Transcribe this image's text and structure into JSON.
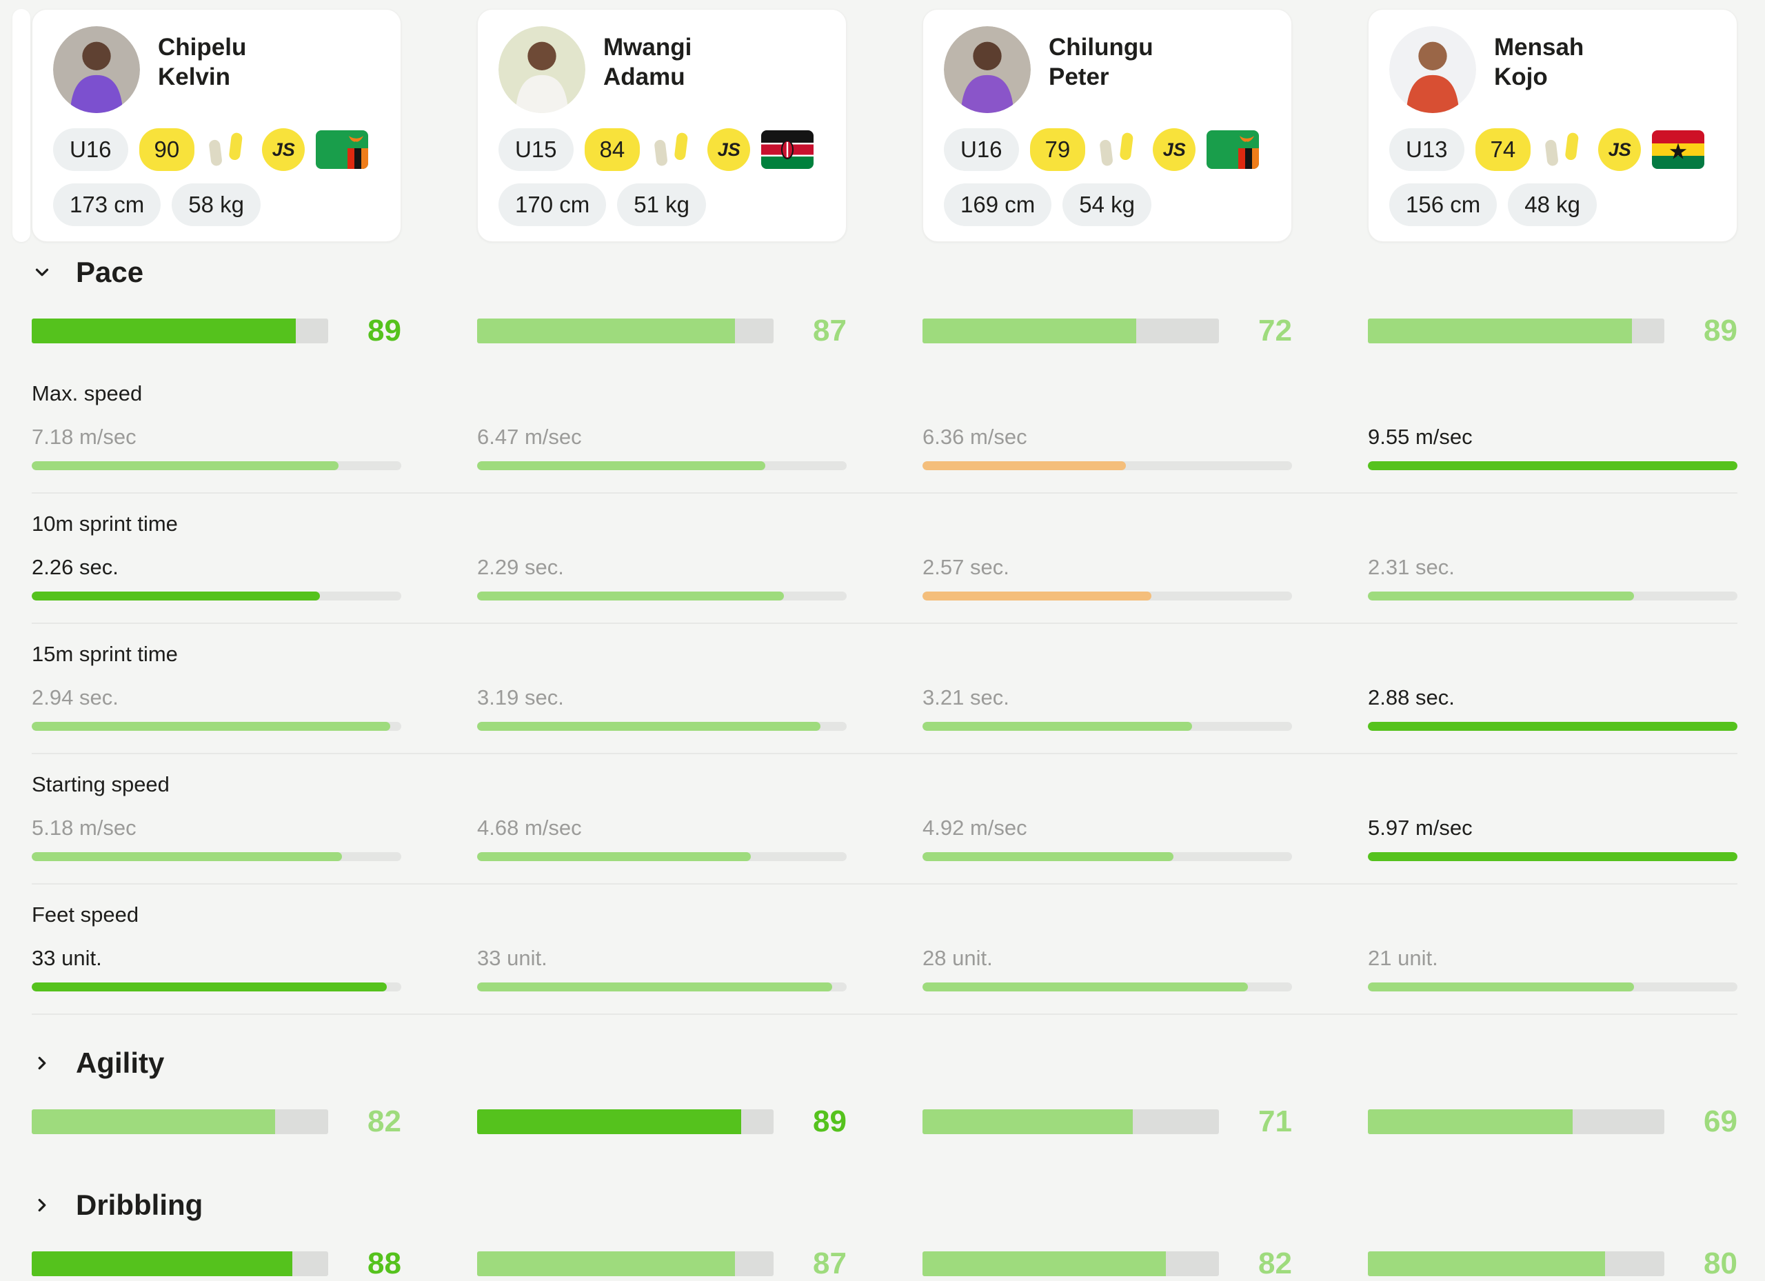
{
  "colors": {
    "page_bg": "#F4F5F3",
    "card_bg": "#FFFFFF",
    "pill_bg": "#EDF0F1",
    "badge_yellow": "#F8E23B",
    "text_dark": "#1E1E1C",
    "text_gray": "#9B9B99",
    "green_strong": "#55C21D",
    "green_light": "#9EDB7D",
    "orange": "#F4BE7B",
    "bar_track": "#DCDDDB",
    "divider": "#E7E8E6"
  },
  "players": [
    {
      "first": "Chipelu",
      "last": "Kelvin",
      "age_group": "U16",
      "rating": "90",
      "js": "JS",
      "flag": "zambia",
      "height": "173 cm",
      "weight": "58 kg",
      "avatar_bg": "#B9B3AB",
      "avatar_shirt": "#7C50CF",
      "avatar_skin": "#5F4132"
    },
    {
      "first": "Mwangi",
      "last": "Adamu",
      "age_group": "U15",
      "rating": "84",
      "js": "JS",
      "flag": "kenya",
      "height": "170 cm",
      "weight": "51 kg",
      "avatar_bg": "#E2E5CC",
      "avatar_shirt": "#F4F3EF",
      "avatar_skin": "#6E4A36"
    },
    {
      "first": "Chilungu",
      "last": "Peter",
      "age_group": "U16",
      "rating": "79",
      "js": "JS",
      "flag": "zambia",
      "height": "169 cm",
      "weight": "54 kg",
      "avatar_bg": "#BDB6AC",
      "avatar_shirt": "#8A55C9",
      "avatar_skin": "#5C3E2F"
    },
    {
      "first": "Mensah",
      "last": "Kojo",
      "age_group": "U13",
      "rating": "74",
      "js": "JS",
      "flag": "ghana",
      "height": "156 cm",
      "weight": "48 kg",
      "avatar_bg": "#F1F2F4",
      "avatar_shirt": "#D84F33",
      "avatar_skin": "#9A6647"
    }
  ],
  "sections": [
    {
      "title": "Pace",
      "chevron": "down",
      "scores": [
        {
          "v": "89",
          "tone": "strong"
        },
        {
          "v": "87",
          "tone": "light"
        },
        {
          "v": "72",
          "tone": "light"
        },
        {
          "v": "89",
          "tone": "light"
        }
      ],
      "metrics": [
        {
          "label": "Max. speed",
          "cells": [
            {
              "text": "7.18 m/sec",
              "tone": "normal",
              "bar": "light",
              "fill": 83
            },
            {
              "text": "6.47 m/sec",
              "tone": "normal",
              "bar": "light",
              "fill": 78
            },
            {
              "text": "6.36 m/sec",
              "tone": "normal",
              "bar": "orange",
              "fill": 55
            },
            {
              "text": "9.55 m/sec",
              "tone": "best",
              "bar": "strong",
              "fill": 100
            }
          ]
        },
        {
          "label": "10m sprint time",
          "cells": [
            {
              "text": "2.26 sec.",
              "tone": "best",
              "bar": "strong",
              "fill": 78
            },
            {
              "text": "2.29 sec.",
              "tone": "normal",
              "bar": "light",
              "fill": 83
            },
            {
              "text": "2.57 sec.",
              "tone": "normal",
              "bar": "orange",
              "fill": 62
            },
            {
              "text": "2.31 sec.",
              "tone": "normal",
              "bar": "light",
              "fill": 72
            }
          ]
        },
        {
          "label": "15m sprint time",
          "cells": [
            {
              "text": "2.94 sec.",
              "tone": "normal",
              "bar": "light",
              "fill": 97
            },
            {
              "text": "3.19 sec.",
              "tone": "normal",
              "bar": "light",
              "fill": 93
            },
            {
              "text": "3.21 sec.",
              "tone": "normal",
              "bar": "light",
              "fill": 73
            },
            {
              "text": "2.88 sec.",
              "tone": "best",
              "bar": "strong",
              "fill": 100
            }
          ]
        },
        {
          "label": "Starting speed",
          "cells": [
            {
              "text": "5.18 m/sec",
              "tone": "normal",
              "bar": "light",
              "fill": 84
            },
            {
              "text": "4.68 m/sec",
              "tone": "normal",
              "bar": "light",
              "fill": 74
            },
            {
              "text": "4.92 m/sec",
              "tone": "normal",
              "bar": "light",
              "fill": 68
            },
            {
              "text": "5.97 m/sec",
              "tone": "best",
              "bar": "strong",
              "fill": 100
            }
          ]
        },
        {
          "label": "Feet speed",
          "cells": [
            {
              "text": "33 unit.",
              "tone": "best",
              "bar": "strong",
              "fill": 96
            },
            {
              "text": "33 unit.",
              "tone": "normal",
              "bar": "light",
              "fill": 96
            },
            {
              "text": "28 unit.",
              "tone": "normal",
              "bar": "light",
              "fill": 88
            },
            {
              "text": "21 unit.",
              "tone": "normal",
              "bar": "light",
              "fill": 72
            }
          ]
        }
      ]
    },
    {
      "title": "Agility",
      "chevron": "right",
      "scores": [
        {
          "v": "82",
          "tone": "light"
        },
        {
          "v": "89",
          "tone": "strong"
        },
        {
          "v": "71",
          "tone": "light"
        },
        {
          "v": "69",
          "tone": "light"
        }
      ]
    },
    {
      "title": "Dribbling",
      "chevron": "right",
      "scores": [
        {
          "v": "88",
          "tone": "strong"
        },
        {
          "v": "87",
          "tone": "light"
        },
        {
          "v": "82",
          "tone": "light"
        },
        {
          "v": "80",
          "tone": "light"
        }
      ]
    }
  ]
}
